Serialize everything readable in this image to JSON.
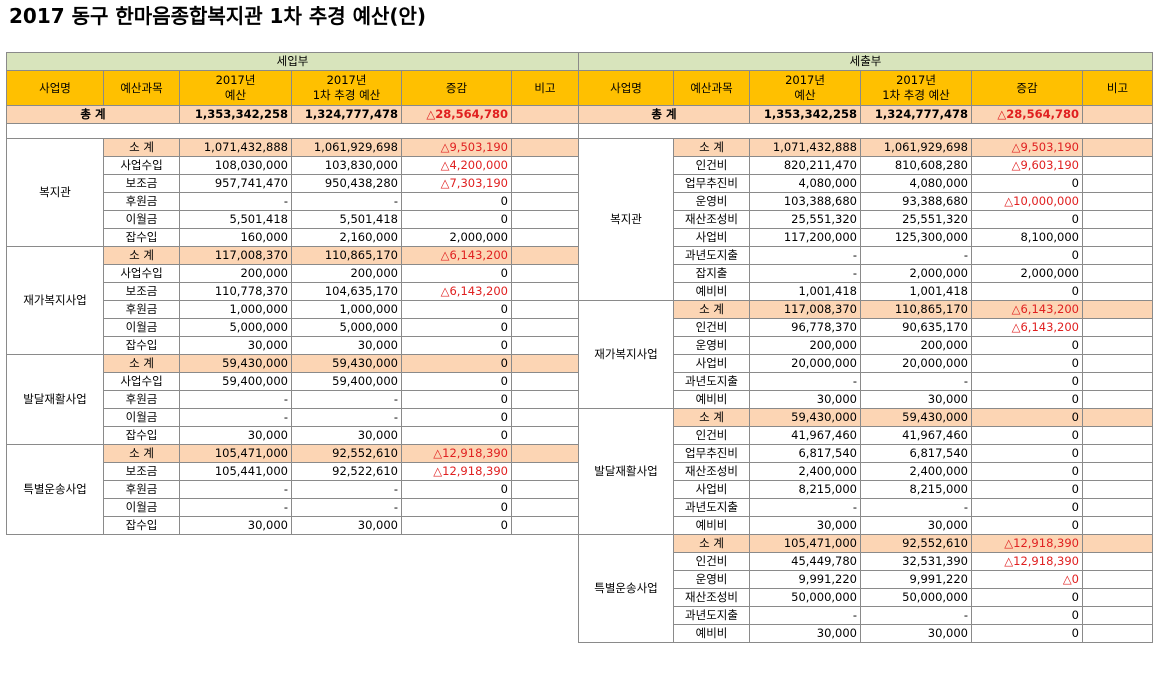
{
  "title": "2017 동구 한마음종합복지관 1차 추경 예산(안)",
  "headers": {
    "name": "사업명",
    "subject": "예산과목",
    "budget2017": [
      "2017년",
      "예산"
    ],
    "revised": [
      "2017년",
      "1차 추경 예산"
    ],
    "change": "증감",
    "note": "비고"
  },
  "sections": [
    {
      "title": "세입부",
      "total": {
        "label": "총      계",
        "budget": "1,353,342,258",
        "revised": "1,324,777,478",
        "change": "△28,564,780"
      },
      "groups": [
        {
          "name": "복지관",
          "rows": [
            {
              "subject": "소 계",
              "budget": "1,071,432,888",
              "revised": "1,061,929,698",
              "change": "△9,503,190",
              "subtotal": true
            },
            {
              "subject": "사업수입",
              "budget": "108,030,000",
              "revised": "103,830,000",
              "change": "△4,200,000"
            },
            {
              "subject": "보조금",
              "budget": "957,741,470",
              "revised": "950,438,280",
              "change": "△7,303,190"
            },
            {
              "subject": "후원금",
              "budget": "-",
              "revised": "-",
              "change": "0"
            },
            {
              "subject": "이월금",
              "budget": "5,501,418",
              "revised": "5,501,418",
              "change": "0"
            },
            {
              "subject": "잡수입",
              "budget": "160,000",
              "revised": "2,160,000",
              "change": "2,000,000"
            }
          ]
        },
        {
          "name": "재가복지사업",
          "rows": [
            {
              "subject": "소 계",
              "budget": "117,008,370",
              "revised": "110,865,170",
              "change": "△6,143,200",
              "subtotal": true
            },
            {
              "subject": "사업수입",
              "budget": "200,000",
              "revised": "200,000",
              "change": "0"
            },
            {
              "subject": "보조금",
              "budget": "110,778,370",
              "revised": "104,635,170",
              "change": "△6,143,200"
            },
            {
              "subject": "후원금",
              "budget": "1,000,000",
              "revised": "1,000,000",
              "change": "0"
            },
            {
              "subject": "이월금",
              "budget": "5,000,000",
              "revised": "5,000,000",
              "change": "0"
            },
            {
              "subject": "잡수입",
              "budget": "30,000",
              "revised": "30,000",
              "change": "0"
            }
          ]
        },
        {
          "name": "발달재활사업",
          "rows": [
            {
              "subject": "소 계",
              "budget": "59,430,000",
              "revised": "59,430,000",
              "change": "0",
              "subtotal": true
            },
            {
              "subject": "사업수입",
              "budget": "59,400,000",
              "revised": "59,400,000",
              "change": "0"
            },
            {
              "subject": "후원금",
              "budget": "-",
              "revised": "-",
              "change": "0"
            },
            {
              "subject": "이월금",
              "budget": "-",
              "revised": "-",
              "change": "0"
            },
            {
              "subject": "잡수입",
              "budget": "30,000",
              "revised": "30,000",
              "change": "0"
            }
          ]
        },
        {
          "name": "특별운송사업",
          "rows": [
            {
              "subject": "소 계",
              "budget": "105,471,000",
              "revised": "92,552,610",
              "change": "△12,918,390",
              "subtotal": true
            },
            {
              "subject": "보조금",
              "budget": "105,441,000",
              "revised": "92,522,610",
              "change": "△12,918,390"
            },
            {
              "subject": "후원금",
              "budget": "-",
              "revised": "-",
              "change": "0"
            },
            {
              "subject": "이월금",
              "budget": "-",
              "revised": "-",
              "change": "0"
            },
            {
              "subject": "잡수입",
              "budget": "30,000",
              "revised": "30,000",
              "change": "0"
            }
          ]
        }
      ]
    },
    {
      "title": "세출부",
      "total": {
        "label": "총      계",
        "budget": "1,353,342,258",
        "revised": "1,324,777,478",
        "change": "△28,564,780"
      },
      "groups": [
        {
          "name": "복지관",
          "rows": [
            {
              "subject": "소 계",
              "budget": "1,071,432,888",
              "revised": "1,061,929,698",
              "change": "△9,503,190",
              "subtotal": true
            },
            {
              "subject": "인건비",
              "budget": "820,211,470",
              "revised": "810,608,280",
              "change": "△9,603,190"
            },
            {
              "subject": "업무추진비",
              "budget": "4,080,000",
              "revised": "4,080,000",
              "change": "0"
            },
            {
              "subject": "운영비",
              "budget": "103,388,680",
              "revised": "93,388,680",
              "change": "△10,000,000"
            },
            {
              "subject": "재산조성비",
              "budget": "25,551,320",
              "revised": "25,551,320",
              "change": "0"
            },
            {
              "subject": "사업비",
              "budget": "117,200,000",
              "revised": "125,300,000",
              "change": "8,100,000"
            },
            {
              "subject": "과년도지출",
              "budget": "-",
              "revised": "-",
              "change": "0"
            },
            {
              "subject": "잡지출",
              "budget": "-",
              "revised": "2,000,000",
              "change": "2,000,000"
            },
            {
              "subject": "예비비",
              "budget": "1,001,418",
              "revised": "1,001,418",
              "change": "0"
            }
          ]
        },
        {
          "name": "재가복지사업",
          "rows": [
            {
              "subject": "소 계",
              "budget": "117,008,370",
              "revised": "110,865,170",
              "change": "△6,143,200",
              "subtotal": true
            },
            {
              "subject": "인건비",
              "budget": "96,778,370",
              "revised": "90,635,170",
              "change": "△6,143,200"
            },
            {
              "subject": "운영비",
              "budget": "200,000",
              "revised": "200,000",
              "change": "0"
            },
            {
              "subject": "사업비",
              "budget": "20,000,000",
              "revised": "20,000,000",
              "change": "0"
            },
            {
              "subject": "과년도지출",
              "budget": "-",
              "revised": "-",
              "change": "0"
            },
            {
              "subject": "예비비",
              "budget": "30,000",
              "revised": "30,000",
              "change": "0"
            }
          ]
        },
        {
          "name": "발달재활사업",
          "rows": [
            {
              "subject": "소 계",
              "budget": "59,430,000",
              "revised": "59,430,000",
              "change": "0",
              "subtotal": true
            },
            {
              "subject": "인건비",
              "budget": "41,967,460",
              "revised": "41,967,460",
              "change": "0"
            },
            {
              "subject": "업무추진비",
              "budget": "6,817,540",
              "revised": "6,817,540",
              "change": "0"
            },
            {
              "subject": "재산조성비",
              "budget": "2,400,000",
              "revised": "2,400,000",
              "change": "0"
            },
            {
              "subject": "사업비",
              "budget": "8,215,000",
              "revised": "8,215,000",
              "change": "0"
            },
            {
              "subject": "과년도지출",
              "budget": "-",
              "revised": "-",
              "change": "0"
            },
            {
              "subject": "예비비",
              "budget": "30,000",
              "revised": "30,000",
              "change": "0"
            }
          ]
        },
        {
          "name": "특별운송사업",
          "rows": [
            {
              "subject": "소 계",
              "budget": "105,471,000",
              "revised": "92,552,610",
              "change": "△12,918,390",
              "subtotal": true
            },
            {
              "subject": "인건비",
              "budget": "45,449,780",
              "revised": "32,531,390",
              "change": "△12,918,390"
            },
            {
              "subject": "운영비",
              "budget": "9,991,220",
              "revised": "9,991,220",
              "change": "△0"
            },
            {
              "subject": "재산조성비",
              "budget": "50,000,000",
              "revised": "50,000,000",
              "change": "0"
            },
            {
              "subject": "과년도지출",
              "budget": "-",
              "revised": "-",
              "change": "0"
            },
            {
              "subject": "예비비",
              "budget": "30,000",
              "revised": "30,000",
              "change": "0"
            }
          ]
        }
      ]
    }
  ]
}
